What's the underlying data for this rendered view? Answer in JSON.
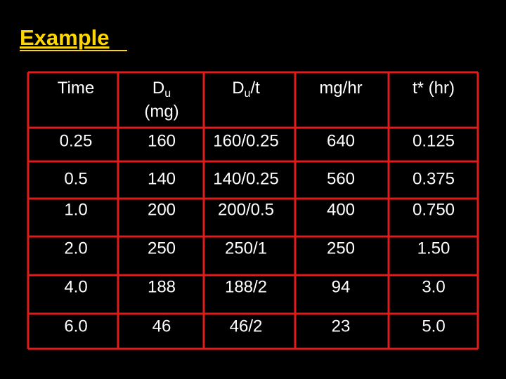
{
  "title": "Example",
  "table": {
    "header": [
      {
        "text": "Time"
      },
      {
        "text": "D",
        "sub": "u",
        "line2": "(mg)"
      },
      {
        "text": "D",
        "sub": "u",
        "after": "/t"
      },
      {
        "text": "mg/hr"
      },
      {
        "text": "t* (hr)"
      }
    ],
    "rows": [
      [
        "0.25",
        "160",
        "160/0.25",
        "640",
        "0.125"
      ],
      [
        "0.5",
        "140",
        "140/0.25",
        "560",
        "0.375"
      ],
      [
        "1.0",
        "200",
        "200/0.5",
        "400",
        "0.750"
      ],
      [
        "2.0",
        "250",
        "250/1",
        "250",
        "1.50"
      ],
      [
        "4.0",
        "188",
        "188/2",
        "94",
        "3.0"
      ],
      [
        "6.0",
        "46",
        "46/2",
        "23",
        "5.0"
      ]
    ]
  }
}
